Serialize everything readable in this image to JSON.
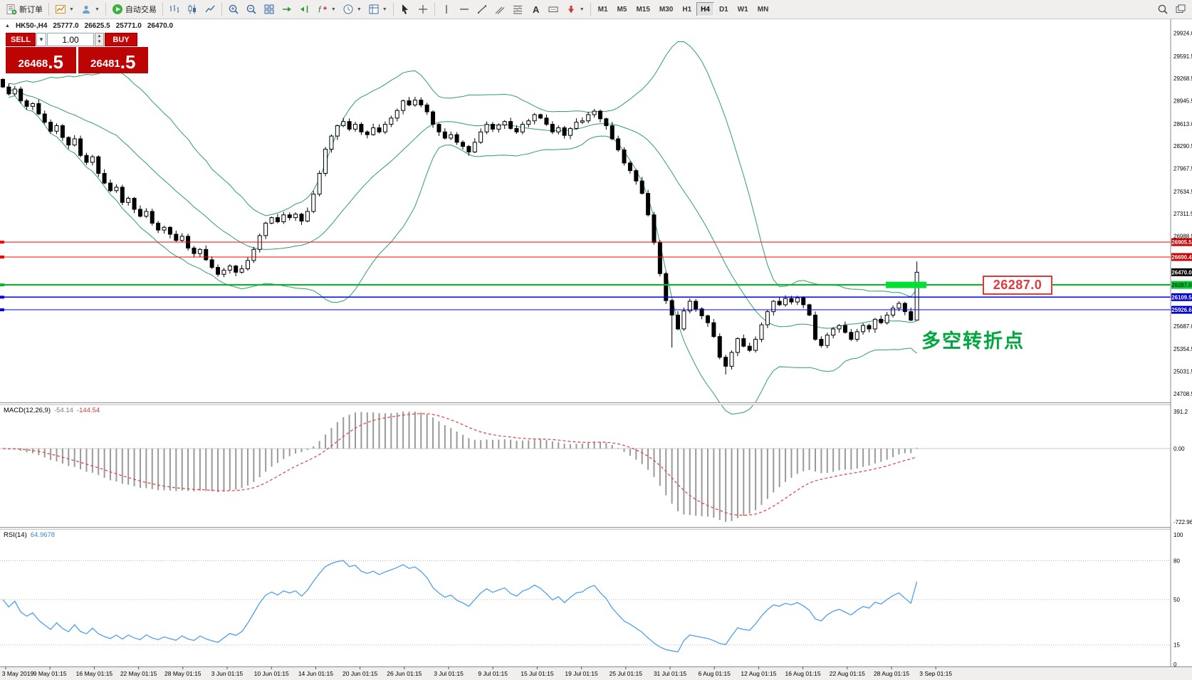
{
  "toolbar": {
    "new_order": "新订单",
    "autotrading": "自动交易",
    "timeframes": [
      "M1",
      "M5",
      "M15",
      "M30",
      "H1",
      "H4",
      "D1",
      "W1",
      "MN"
    ],
    "active_timeframe": "H4"
  },
  "title_bar": {
    "symbol_period": "HK50-,H4",
    "open": "25777.0",
    "high": "26625.5",
    "low": "25771.0",
    "close": "26470.0"
  },
  "one_click": {
    "sell_label": "SELL",
    "buy_label": "BUY",
    "volume": "1.00",
    "sell_price": {
      "main": "26468",
      "big": ".5"
    },
    "buy_price": {
      "main": "26481",
      "big": ".5"
    }
  },
  "indicators": {
    "macd": {
      "name": "MACD(12,26,9)",
      "value1": "-54.14",
      "value2": "-144.54"
    },
    "rsi": {
      "name": "RSI(14)",
      "value": "64.9678"
    }
  },
  "annotations": {
    "level_label": "26287.0",
    "turning_point": "多空转折点",
    "label_color": "#e03a3a",
    "turning_point_color": "#00a73e"
  },
  "chart_data": {
    "type": "candlestick",
    "symbol": "HK50-",
    "timeframe": "H4",
    "price_ticks": [
      29924.0,
      29591.5,
      29268.5,
      28945.5,
      28613.0,
      28290.5,
      27967.5,
      27634.5,
      27311.5,
      26988.5,
      25687.0,
      25354.5,
      25031.5,
      24708.5
    ],
    "price_badges": [
      {
        "label": "26905.5",
        "price": 26905.5,
        "bg": "#cc0000",
        "fg": "#ffffff",
        "line": "#ff0000",
        "line_width": 1.2
      },
      {
        "label": "26690.4",
        "price": 26690.4,
        "bg": "#cc0000",
        "fg": "#ffffff",
        "line": "#ff0000",
        "line_width": 1.2
      },
      {
        "label": "26470.0",
        "price": 26470.0,
        "bg": "#000000",
        "fg": "#ffffff",
        "line": null,
        "line_width": 0
      },
      {
        "label": "26287.0",
        "price": 26287.0,
        "bg": "#00cc33",
        "fg": "#003311",
        "line": "#00bb22",
        "line_width": 2
      },
      {
        "label": "26109.5",
        "price": 26109.5,
        "bg": "#0000cc",
        "fg": "#ffffff",
        "line": "#0000ee",
        "line_width": 1.2
      },
      {
        "label": "25926.6",
        "price": 25926.6,
        "bg": "#0000cc",
        "fg": "#ffffff",
        "line": "#0000ee",
        "line_width": 1.2
      }
    ],
    "x_labels": [
      "3 May 2019",
      "9 May 01:15",
      "16 May 01:15",
      "22 May 01:15",
      "28 May 01:15",
      "3 Jun 01:15",
      "10 Jun 01:15",
      "14 Jun 01:15",
      "20 Jun 01:15",
      "26 Jun 01:15",
      "3 Jul 01:15",
      "9 Jul 01:15",
      "15 Jul 01:15",
      "19 Jul 01:15",
      "25 Jul 01:15",
      "31 Jul 01:15",
      "6 Aug 01:15",
      "12 Aug 01:15",
      "16 Aug 01:15",
      "22 Aug 01:15",
      "28 Aug 01:15",
      "3 Sep 01:15"
    ],
    "first_open": 29260,
    "closes": [
      29150,
      29050,
      29120,
      28950,
      28870,
      28910,
      28760,
      28640,
      28510,
      28590,
      28420,
      28310,
      28400,
      28160,
      28060,
      28140,
      27900,
      27760,
      27650,
      27700,
      27480,
      27540,
      27380,
      27280,
      27350,
      27180,
      27080,
      27120,
      27020,
      26930,
      26990,
      26820,
      26740,
      26800,
      26650,
      26540,
      26440,
      26500,
      26560,
      26470,
      26520,
      26640,
      26800,
      27000,
      27180,
      27260,
      27200,
      27300,
      27260,
      27310,
      27210,
      27350,
      27600,
      27900,
      28250,
      28440,
      28590,
      28650,
      28540,
      28610,
      28500,
      28460,
      28560,
      28500,
      28610,
      28700,
      28810,
      28950,
      28890,
      28960,
      28890,
      28790,
      28610,
      28500,
      28410,
      28460,
      28350,
      28290,
      28210,
      28350,
      28500,
      28610,
      28540,
      28600,
      28650,
      28550,
      28500,
      28610,
      28660,
      28750,
      28700,
      28610,
      28500,
      28560,
      28450,
      28550,
      28640,
      28660,
      28750,
      28800,
      28690,
      28590,
      28400,
      28240,
      28050,
      27940,
      27790,
      27610,
      27300,
      26900,
      26450,
      26060,
      25850,
      25650,
      25910,
      26050,
      25940,
      25840,
      25740,
      25540,
      25240,
      25110,
      25310,
      25510,
      25400,
      25340,
      25500,
      25710,
      25900,
      26050,
      26000,
      26090,
      26040,
      26100,
      26000,
      25850,
      25500,
      25410,
      25560,
      25650,
      25700,
      25600,
      25500,
      25610,
      25700,
      25650,
      25790,
      25740,
      25850,
      25950,
      26020,
      25900,
      25777,
      26470
    ],
    "last_candle": {
      "open": 25777.0,
      "high": 26625.5,
      "low": 25771.0,
      "close": 26470.0
    },
    "low_overrides": {
      "112": 25380,
      "121": 24990
    },
    "highlight": {
      "price": 26287.0,
      "color": "#00e033"
    },
    "bollinger": {
      "period": 20,
      "deviation": 2,
      "color": "#2f9e68"
    },
    "macd": {
      "axis_labels": [
        "391.2",
        "0.00",
        "-722.96"
      ],
      "bar_color": "#999999",
      "signal_color": "#e04040"
    },
    "rsi": {
      "levels": [
        100,
        80,
        50,
        15,
        0
      ],
      "line_color": "#4d9ff2"
    }
  }
}
